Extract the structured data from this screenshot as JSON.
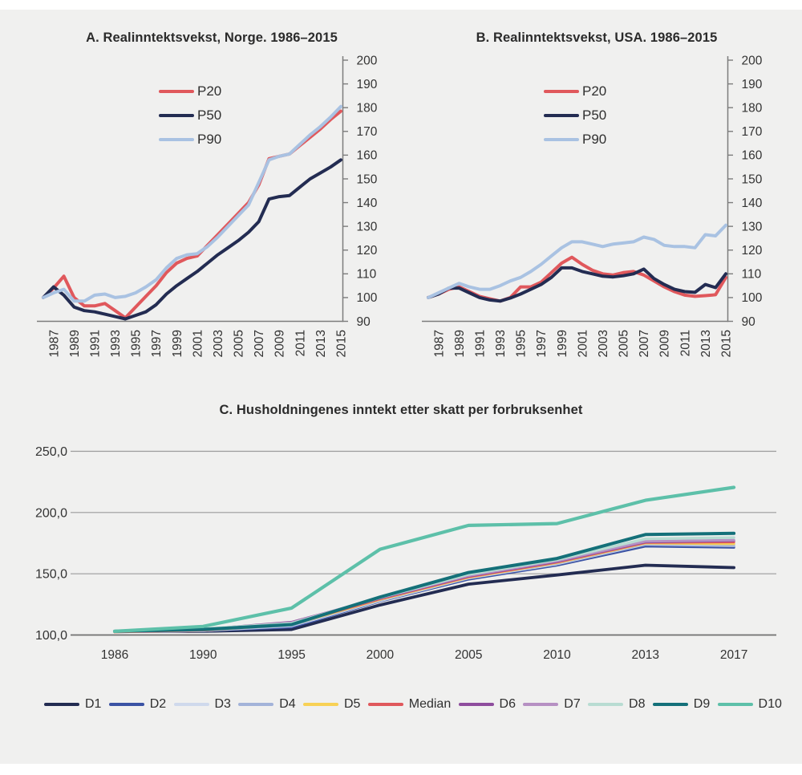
{
  "colors": {
    "canvas_bg": "#f0f0ef",
    "axis": "#7c7c7c",
    "grid": "#9b9b9b",
    "baseline": "#6f6f6f",
    "p20_red": "#e0585c",
    "p50_navy": "#232c52",
    "p90_blue": "#a9c2e2"
  },
  "chart_data": [
    {
      "id": "A",
      "type": "line",
      "title": "A. Realinntektsvekst, Norge. 1986–2015",
      "x_start": 1986,
      "x_end": 2015,
      "x_tick_labels": [
        "1987",
        "1989",
        "1991",
        "1993",
        "1995",
        "1997",
        "1999",
        "2001",
        "2003",
        "2005",
        "2007",
        "2009",
        "2011",
        "2013",
        "2015"
      ],
      "y_ticks": [
        200,
        190,
        180,
        170,
        160,
        150,
        140,
        130,
        120,
        110,
        100,
        90
      ],
      "ylim": [
        90,
        200
      ],
      "grid": false,
      "legend_position": "upper-left-inside",
      "series": [
        {
          "name": "P20",
          "color": "#e0585c",
          "width": 4,
          "values": [
            100,
            104,
            109,
            100,
            96.5,
            96.5,
            97.5,
            94.5,
            91.5,
            96,
            100.5,
            105,
            110.5,
            114.5,
            116.5,
            117.5,
            122,
            126.5,
            131,
            135.5,
            140,
            147.5,
            158.5,
            159.5,
            160.5,
            164,
            167.5,
            171,
            175,
            178.5
          ]
        },
        {
          "name": "P50",
          "color": "#232c52",
          "width": 4,
          "values": [
            100,
            104.5,
            101,
            96,
            94.5,
            94,
            93,
            92,
            91,
            92.5,
            94,
            97,
            101.5,
            105,
            108,
            111,
            114.5,
            118,
            121,
            124,
            127.5,
            132,
            141.5,
            142.5,
            143,
            146.5,
            150,
            152.5,
            155,
            158
          ]
        },
        {
          "name": "P90",
          "color": "#a9c2e2",
          "width": 4,
          "values": [
            100,
            102,
            103.5,
            98.5,
            98.5,
            101,
            101.5,
            100,
            100.5,
            102,
            104.5,
            107.5,
            112.5,
            116.5,
            118,
            118.5,
            121.5,
            125.5,
            130,
            134.5,
            139,
            148.5,
            158,
            159.5,
            160.5,
            164.5,
            168.5,
            172,
            176,
            180.5
          ]
        }
      ]
    },
    {
      "id": "B",
      "type": "line",
      "title": "B. Realinntektsvekst, USA. 1986–2015",
      "x_start": 1986,
      "x_end": 2015,
      "x_tick_labels": [
        "1987",
        "1989",
        "1991",
        "1993",
        "1995",
        "1997",
        "1999",
        "2001",
        "2003",
        "2005",
        "2007",
        "2009",
        "2011",
        "2013",
        "2015"
      ],
      "y_ticks": [
        200,
        190,
        180,
        170,
        160,
        150,
        140,
        130,
        120,
        110,
        100,
        90
      ],
      "ylim": [
        90,
        200
      ],
      "grid": false,
      "legend_position": "upper-left-inside",
      "series": [
        {
          "name": "P20",
          "color": "#e0585c",
          "width": 4,
          "values": [
            100,
            101.5,
            103.5,
            104.5,
            102.5,
            100.5,
            99.5,
            98.5,
            100,
            104.5,
            104.5,
            106.5,
            110.5,
            114.5,
            117,
            114,
            111.5,
            110,
            109.5,
            110.5,
            111,
            109.5,
            107,
            104.5,
            102.5,
            101,
            100.5,
            100.8,
            101.2,
            108.5
          ]
        },
        {
          "name": "P50",
          "color": "#232c52",
          "width": 4,
          "values": [
            100,
            101.5,
            104,
            104,
            102,
            100,
            99,
            98.5,
            99.8,
            101.5,
            103.5,
            105.5,
            108.5,
            112.5,
            112.5,
            111,
            110,
            109,
            108.7,
            109.2,
            110,
            112,
            108,
            105.5,
            103.5,
            102.5,
            102.2,
            105.5,
            104.2,
            110
          ]
        },
        {
          "name": "P90",
          "color": "#a9c2e2",
          "width": 4,
          "values": [
            100,
            102,
            104,
            106,
            104.5,
            103.5,
            103.5,
            105,
            107,
            108.5,
            111,
            114,
            117.5,
            121,
            123.5,
            123.5,
            122.5,
            121.5,
            122.5,
            123,
            123.5,
            125.5,
            124.5,
            122,
            121.5,
            121.5,
            121,
            126.5,
            126,
            130.5
          ]
        }
      ]
    },
    {
      "id": "C",
      "type": "line",
      "title": "C. Husholdningenes inntekt etter skatt per forbruksenhet",
      "x_labels": [
        "1986",
        "1990",
        "1995",
        "2000",
        "2005",
        "2010",
        "2013",
        "2017"
      ],
      "y_ticks": [
        250,
        200,
        150,
        100
      ],
      "y_tick_labels": [
        "250,0",
        "200,0",
        "150,0",
        "100,0"
      ],
      "ylim": [
        100,
        250
      ],
      "grid": true,
      "legend_position": "bottom",
      "series": [
        {
          "name": "D1",
          "color": "#232c52",
          "width": 3.8,
          "values": [
            103,
            103,
            104.5,
            124.5,
            141.5,
            149,
            157,
            155
          ]
        },
        {
          "name": "D2",
          "color": "#3b53a4",
          "width": 3.2,
          "values": [
            102.5,
            103.5,
            106.5,
            127.5,
            145.5,
            157,
            172.5,
            171.5
          ]
        },
        {
          "name": "D3",
          "color": "#cfd9ec",
          "width": 3.2,
          "values": [
            102.5,
            103.5,
            107.5,
            128,
            146.5,
            158,
            174,
            173
          ]
        },
        {
          "name": "D4",
          "color": "#a3b3d9",
          "width": 3.2,
          "values": [
            102.5,
            103.5,
            108,
            128.5,
            147,
            158.5,
            174.5,
            173.5
          ]
        },
        {
          "name": "D5",
          "color": "#f8d155",
          "width": 3.2,
          "values": [
            102.5,
            104,
            108.5,
            129,
            147,
            159,
            175,
            174.5
          ]
        },
        {
          "name": "Median",
          "color": "#e0585c",
          "width": 3.2,
          "values": [
            102.5,
            104,
            109,
            129.5,
            147.5,
            159.5,
            175.5,
            176
          ]
        },
        {
          "name": "D6",
          "color": "#8e4d9d",
          "width": 3.2,
          "values": [
            103,
            104.5,
            110.5,
            130,
            148,
            160,
            176,
            177
          ]
        },
        {
          "name": "D7",
          "color": "#b690c3",
          "width": 3.2,
          "values": [
            103,
            104.5,
            110,
            130.5,
            148.5,
            160.5,
            176.5,
            177.5
          ]
        },
        {
          "name": "D8",
          "color": "#b8dcd2",
          "width": 3.4,
          "values": [
            103,
            105,
            109.5,
            130.5,
            149.5,
            161.5,
            178.5,
            179.5
          ]
        },
        {
          "name": "D9",
          "color": "#147079",
          "width": 4,
          "values": [
            103,
            104.5,
            108.5,
            131,
            151,
            162.5,
            182,
            183
          ]
        },
        {
          "name": "D10",
          "color": "#5dc0a9",
          "width": 4.2,
          "values": [
            103,
            107,
            122,
            170,
            189.5,
            191,
            210,
            220.5
          ]
        }
      ]
    }
  ]
}
